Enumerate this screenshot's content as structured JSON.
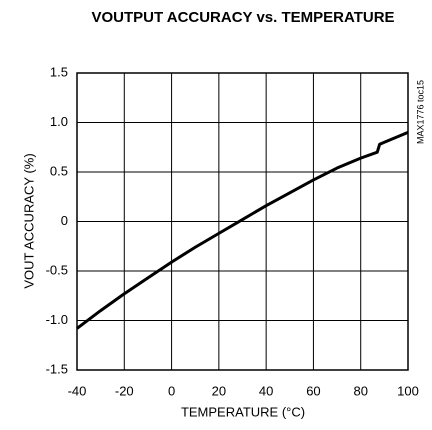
{
  "chart_data": {
    "type": "line",
    "title": "VOUTPUT ACCURACY vs. TEMPERATURE",
    "x_label": "TEMPERATURE (°C)",
    "y_label": "VOUT ACCURACY (%)",
    "annotation": "MAX1776 toc15",
    "x": [
      -40,
      -30,
      -20,
      -10,
      0,
      10,
      20,
      30,
      40,
      50,
      60,
      70,
      80,
      87,
      88,
      90,
      100
    ],
    "series": [
      {
        "name": "VOUT ACCURACY",
        "color": "#000000",
        "values": [
          -1.08,
          -0.9,
          -0.73,
          -0.57,
          -0.41,
          -0.26,
          -0.12,
          0.02,
          0.16,
          0.29,
          0.42,
          0.54,
          0.64,
          0.7,
          0.78,
          0.8,
          0.9
        ]
      }
    ],
    "xlim": [
      -40,
      100
    ],
    "xticks": [
      -40,
      -20,
      0,
      20,
      40,
      60,
      80,
      100
    ],
    "ylim": [
      -1.5,
      1.5
    ],
    "yticks": [
      -1.5,
      {
        "value": -1,
        "label": "-1.0"
      },
      -0.5,
      0,
      0.5,
      {
        "value": 1,
        "label": "1.0"
      },
      1.5
    ],
    "grid": true
  }
}
